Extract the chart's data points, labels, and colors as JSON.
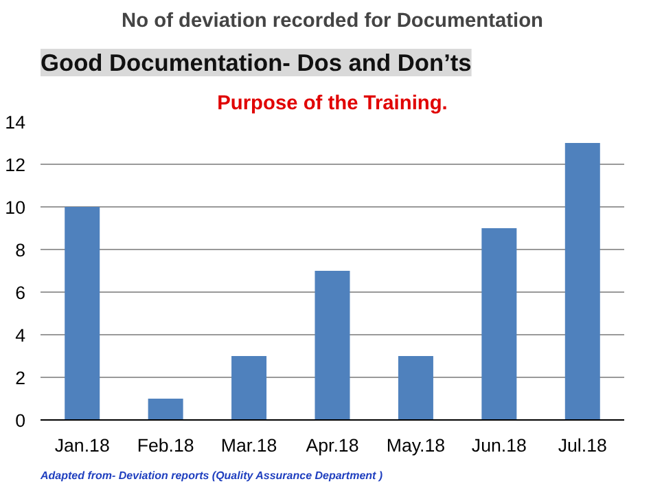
{
  "chart_data": {
    "type": "bar",
    "title": "No of deviation recorded for Documentation",
    "subtitle": "Purpose of the Training.",
    "annotations": [
      "Good Documentation- Dos and Don’ts",
      "Adapted from- Deviation reports (Quality Assurance Department )"
    ],
    "categories": [
      "Jan.18",
      "Feb.18",
      "Mar.18",
      "Apr.18",
      "May.18",
      "Jun.18",
      "Jul.18"
    ],
    "values": [
      10,
      1,
      3,
      7,
      3,
      9,
      13
    ],
    "color": "#4f81bd",
    "ylim": [
      0,
      14
    ],
    "yticks": [
      0,
      2,
      4,
      6,
      8,
      10,
      12,
      14
    ],
    "grid": "y"
  }
}
